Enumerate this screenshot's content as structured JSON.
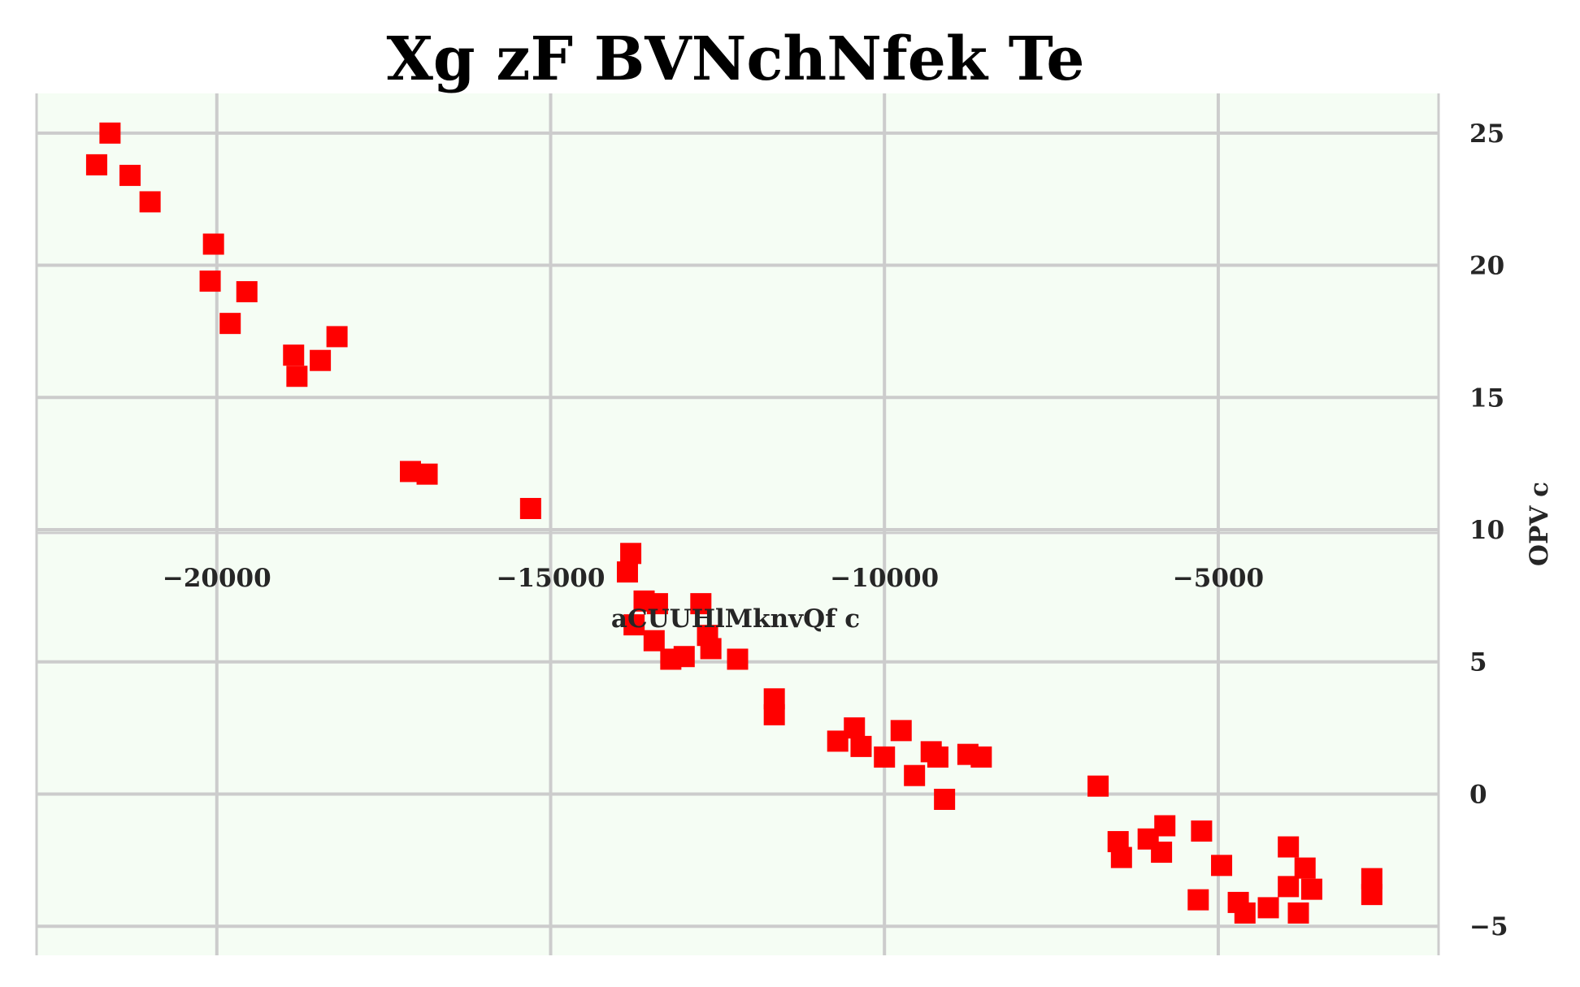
{
  "chart_data": {
    "type": "scatter",
    "title": "Xg  zF BVNchNfek Te",
    "xlabel": "aCUUHlMknvQf c",
    "ylabel": "OPV c",
    "xlim": [
      -22700,
      -1700
    ],
    "ylim": [
      -6.1,
      26.5
    ],
    "x_ticks": [
      -20000,
      -15000,
      -10000,
      -5000
    ],
    "x_tick_labels": [
      "−20000",
      "−15000",
      "−10000",
      "−5000"
    ],
    "y_ticks": [
      -5,
      0,
      5,
      10,
      15,
      20,
      25
    ],
    "y_tick_labels": [
      "−5",
      "0",
      "5",
      "10",
      "15",
      "20",
      "25"
    ],
    "grid": true,
    "background_color": "#f5fdf4",
    "marker": "square",
    "marker_color": "#ff0000",
    "series": [
      {
        "x": [
          -21600,
          -21800,
          -21300,
          -21000,
          -20050,
          -20100,
          -19550,
          -19800,
          -18850,
          -18800,
          -18450,
          -18200,
          -17100,
          -16850,
          -15300,
          -13800,
          -13850,
          -13600,
          -13400,
          -13750,
          -13450,
          -13200,
          -13000,
          -12750,
          -12600,
          -12650,
          -12200,
          -11650,
          -11650,
          -10700,
          -10450,
          -10350,
          -10000,
          -9750,
          -9550,
          -9300,
          -9200,
          -9100,
          -8750,
          -8550,
          -6800,
          -6500,
          -6450,
          -6050,
          -5800,
          -5850,
          -5300,
          -5250,
          -4950,
          -4700,
          -4600,
          -4250,
          -3950,
          -3950,
          -3800,
          -3700,
          -3600,
          -2700,
          -2700
        ],
        "y": [
          25.0,
          23.8,
          23.4,
          22.4,
          20.8,
          19.4,
          19.0,
          17.8,
          16.6,
          15.8,
          16.4,
          17.3,
          12.2,
          12.1,
          10.8,
          9.1,
          8.4,
          7.3,
          7.2,
          6.4,
          5.8,
          5.1,
          5.2,
          7.2,
          5.5,
          6.0,
          5.1,
          3.6,
          3.0,
          2.0,
          2.5,
          1.8,
          1.4,
          2.4,
          0.7,
          1.6,
          1.4,
          -0.2,
          1.5,
          1.4,
          0.3,
          -1.8,
          -2.4,
          -1.7,
          -1.2,
          -2.2,
          -4.0,
          -1.4,
          -2.7,
          -4.1,
          -4.5,
          -4.3,
          -2.0,
          -3.5,
          -4.5,
          -2.8,
          -3.6,
          -3.2,
          -3.8
        ]
      }
    ]
  }
}
